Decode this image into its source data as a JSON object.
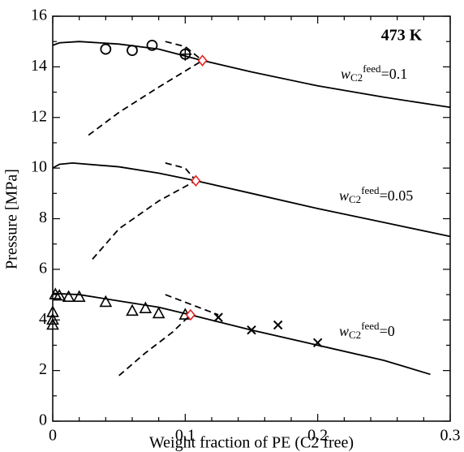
{
  "chart_data": {
    "type": "line",
    "x_label": "Weight fraction of PE (C2 free)",
    "y_label": "Pressure [MPa]",
    "xlim": [
      0,
      0.3
    ],
    "ylim": [
      0,
      16
    ],
    "xticks": [
      0,
      0.1,
      0.2,
      0.3
    ],
    "yticks": [
      0,
      2,
      4,
      6,
      8,
      10,
      12,
      14,
      16
    ],
    "annotations": [
      {
        "text": "473 K"
      },
      {
        "var": "w",
        "sub": "C2",
        "sup": "feed",
        "value": "=0.1"
      },
      {
        "var": "w",
        "sub": "C2",
        "sup": "feed",
        "value": "=0.05"
      },
      {
        "var": "w",
        "sub": "C2",
        "sup": "feed",
        "value": "=0"
      }
    ],
    "series": [
      {
        "style": "solid",
        "color": "#000000",
        "x": [
          0,
          0.005,
          0.02,
          0.05,
          0.08,
          0.113,
          0.15,
          0.2,
          0.25,
          0.3
        ],
        "values": [
          14.85,
          14.95,
          15.0,
          14.9,
          14.7,
          14.25,
          13.8,
          13.25,
          12.8,
          12.4
        ]
      },
      {
        "style": "solid",
        "color": "#000000",
        "x": [
          0,
          0.005,
          0.015,
          0.05,
          0.08,
          0.108,
          0.15,
          0.2,
          0.25,
          0.3
        ],
        "values": [
          10.0,
          10.15,
          10.2,
          10.05,
          9.8,
          9.5,
          9.0,
          8.4,
          7.85,
          7.3
        ]
      },
      {
        "style": "solid",
        "color": "#000000",
        "x": [
          0,
          0.02,
          0.05,
          0.08,
          0.104,
          0.15,
          0.2,
          0.25,
          0.285
        ],
        "values": [
          5.05,
          5.0,
          4.75,
          4.5,
          4.2,
          3.6,
          3.0,
          2.4,
          1.85
        ]
      },
      {
        "style": "dashed",
        "color": "#000000",
        "x": [
          0.027,
          0.05,
          0.08,
          0.113
        ],
        "values": [
          11.3,
          12.2,
          13.2,
          14.25
        ]
      },
      {
        "style": "dashed",
        "color": "#000000",
        "x": [
          0.085,
          0.1,
          0.113
        ],
        "values": [
          15.0,
          14.8,
          14.25
        ]
      },
      {
        "style": "dashed",
        "color": "#000000",
        "x": [
          0.03,
          0.05,
          0.08,
          0.108
        ],
        "values": [
          6.4,
          7.6,
          8.7,
          9.5
        ]
      },
      {
        "style": "dashed",
        "color": "#000000",
        "x": [
          0.085,
          0.1,
          0.108
        ],
        "values": [
          10.2,
          10.0,
          9.5
        ]
      },
      {
        "style": "dashed",
        "color": "#000000",
        "x": [
          0.05,
          0.07,
          0.09,
          0.104
        ],
        "values": [
          1.8,
          2.7,
          3.5,
          4.2
        ]
      },
      {
        "style": "dashed",
        "color": "#000000",
        "x": [
          0.085,
          0.1,
          0.125
        ],
        "values": [
          5.0,
          4.7,
          4.2
        ]
      },
      {
        "marker": "circle",
        "color": "#000000",
        "x": [
          0.04,
          0.06,
          0.075
        ],
        "values": [
          14.7,
          14.65,
          14.85
        ]
      },
      {
        "marker": "circle-cross",
        "color": "#000000",
        "x": [
          0.1
        ],
        "values": [
          14.5
        ]
      },
      {
        "marker": "triangle",
        "color": "#000000",
        "x": [
          0,
          0,
          0,
          0.002,
          0.005,
          0.012,
          0.02,
          0.04,
          0.06,
          0.07,
          0.08,
          0.1
        ],
        "values": [
          3.8,
          4.0,
          4.3,
          5.0,
          4.95,
          4.9,
          4.9,
          4.7,
          4.35,
          4.45,
          4.25,
          4.2
        ]
      },
      {
        "marker": "cross",
        "color": "#000000",
        "x": [
          0.125,
          0.15,
          0.17,
          0.2
        ],
        "values": [
          4.1,
          3.6,
          3.8,
          3.1
        ]
      },
      {
        "marker": "diamond",
        "color": "#e8211f",
        "x": [
          0.113,
          0.108,
          0.104
        ],
        "values": [
          14.25,
          9.5,
          4.2
        ]
      }
    ]
  }
}
